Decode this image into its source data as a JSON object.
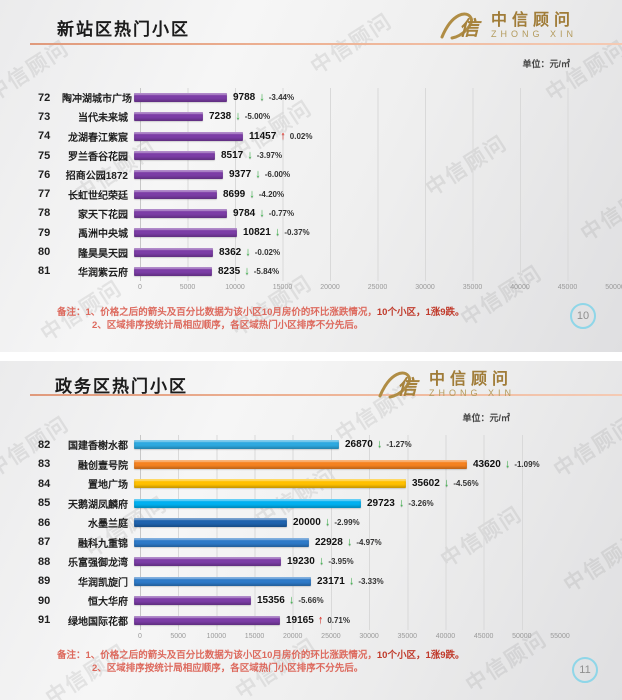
{
  "watermark_text": "中信顾问",
  "unit_label": "单位：元/㎡",
  "logo": {
    "mark": "信",
    "cn": "中信顾问",
    "en": "ZHONG XIN"
  },
  "slides": [
    {
      "page": "10"
    },
    {
      "page": "11"
    }
  ],
  "notes": {
    "label": "备注：",
    "line1_pre": "1、价格之后的箭头及百分比数据为该小区10月房价的环比涨跌情况，",
    "line1_bold": "10个小区，1涨9跌。",
    "line2": "2、区域排序按统计局相应顺序，各区域热门小区排序不分先后。"
  },
  "chart_data": [
    {
      "type": "bar",
      "orientation": "horizontal",
      "title": "新站区热门小区",
      "unit": "元/㎡",
      "axis": {
        "min": 0,
        "max": 50000,
        "step": 5000
      },
      "grid": true,
      "bar_color_default": "#7c3da6",
      "rows": [
        {
          "rank": "72",
          "name": "陶冲湖城市广场",
          "value": 9788,
          "change_label": "-3.44%",
          "direction": "down"
        },
        {
          "rank": "73",
          "name": "当代未来城",
          "value": 7238,
          "change_label": "-5.00%",
          "direction": "down"
        },
        {
          "rank": "74",
          "name": "龙湖春江紫宸",
          "value": 11457,
          "change_label": "0.02%",
          "direction": "up"
        },
        {
          "rank": "75",
          "name": "罗兰香谷花园",
          "value": 8517,
          "change_label": "-3.97%",
          "direction": "down"
        },
        {
          "rank": "76",
          "name": "招商公园1872",
          "value": 9377,
          "change_label": "-6.00%",
          "direction": "down"
        },
        {
          "rank": "77",
          "name": "长虹世纪荣廷",
          "value": 8699,
          "change_label": "-4.20%",
          "direction": "down"
        },
        {
          "rank": "78",
          "name": "家天下花园",
          "value": 9784,
          "change_label": "-0.77%",
          "direction": "down"
        },
        {
          "rank": "79",
          "name": "禹洲中央城",
          "value": 10821,
          "change_label": "-0.37%",
          "direction": "down"
        },
        {
          "rank": "80",
          "name": "隆昊昊天园",
          "value": 8362,
          "change_label": "-0.02%",
          "direction": "down"
        },
        {
          "rank": "81",
          "name": "华润紫云府",
          "value": 8235,
          "change_label": "-5.84%",
          "direction": "down"
        }
      ]
    },
    {
      "type": "bar",
      "orientation": "horizontal",
      "title": "政务区热门小区",
      "unit": "元/㎡",
      "axis": {
        "min": 0,
        "max": 55000,
        "step": 5000
      },
      "grid": true,
      "bar_color_default": "#7c3da6",
      "rows": [
        {
          "rank": "82",
          "name": "国建香榭水都",
          "value": 26870,
          "change_label": "-1.27%",
          "direction": "down",
          "color": "#2ea9e0"
        },
        {
          "rank": "83",
          "name": "融创壹号院",
          "value": 43620,
          "change_label": "-1.09%",
          "direction": "down",
          "color": "#f58220"
        },
        {
          "rank": "84",
          "name": "置地广场",
          "value": 35602,
          "change_label": "-4.56%",
          "direction": "down",
          "color": "#ffc000"
        },
        {
          "rank": "85",
          "name": "天鹅湖凤麟府",
          "value": 29723,
          "change_label": "-3.26%",
          "direction": "down",
          "color": "#00b0f0"
        },
        {
          "rank": "86",
          "name": "水墨兰庭",
          "value": 20000,
          "change_label": "-2.99%",
          "direction": "down",
          "color": "#1f63ae"
        },
        {
          "rank": "87",
          "name": "融科九重锦",
          "value": 22928,
          "change_label": "-4.97%",
          "direction": "down",
          "color": "#2e7ac8"
        },
        {
          "rank": "88",
          "name": "乐富强御龙湾",
          "value": 19230,
          "change_label": "-3.95%",
          "direction": "down",
          "color": "#7c3da6"
        },
        {
          "rank": "89",
          "name": "华润凯旋门",
          "value": 23171,
          "change_label": "-3.33%",
          "direction": "down",
          "color": "#2e7ac8"
        },
        {
          "rank": "90",
          "name": "恒大华府",
          "value": 15356,
          "change_label": "-5.66%",
          "direction": "down",
          "color": "#7c3da6"
        },
        {
          "rank": "91",
          "name": "绿地国际花都",
          "value": 19165,
          "change_label": "0.71%",
          "direction": "up",
          "color": "#7c3da6"
        }
      ]
    }
  ]
}
